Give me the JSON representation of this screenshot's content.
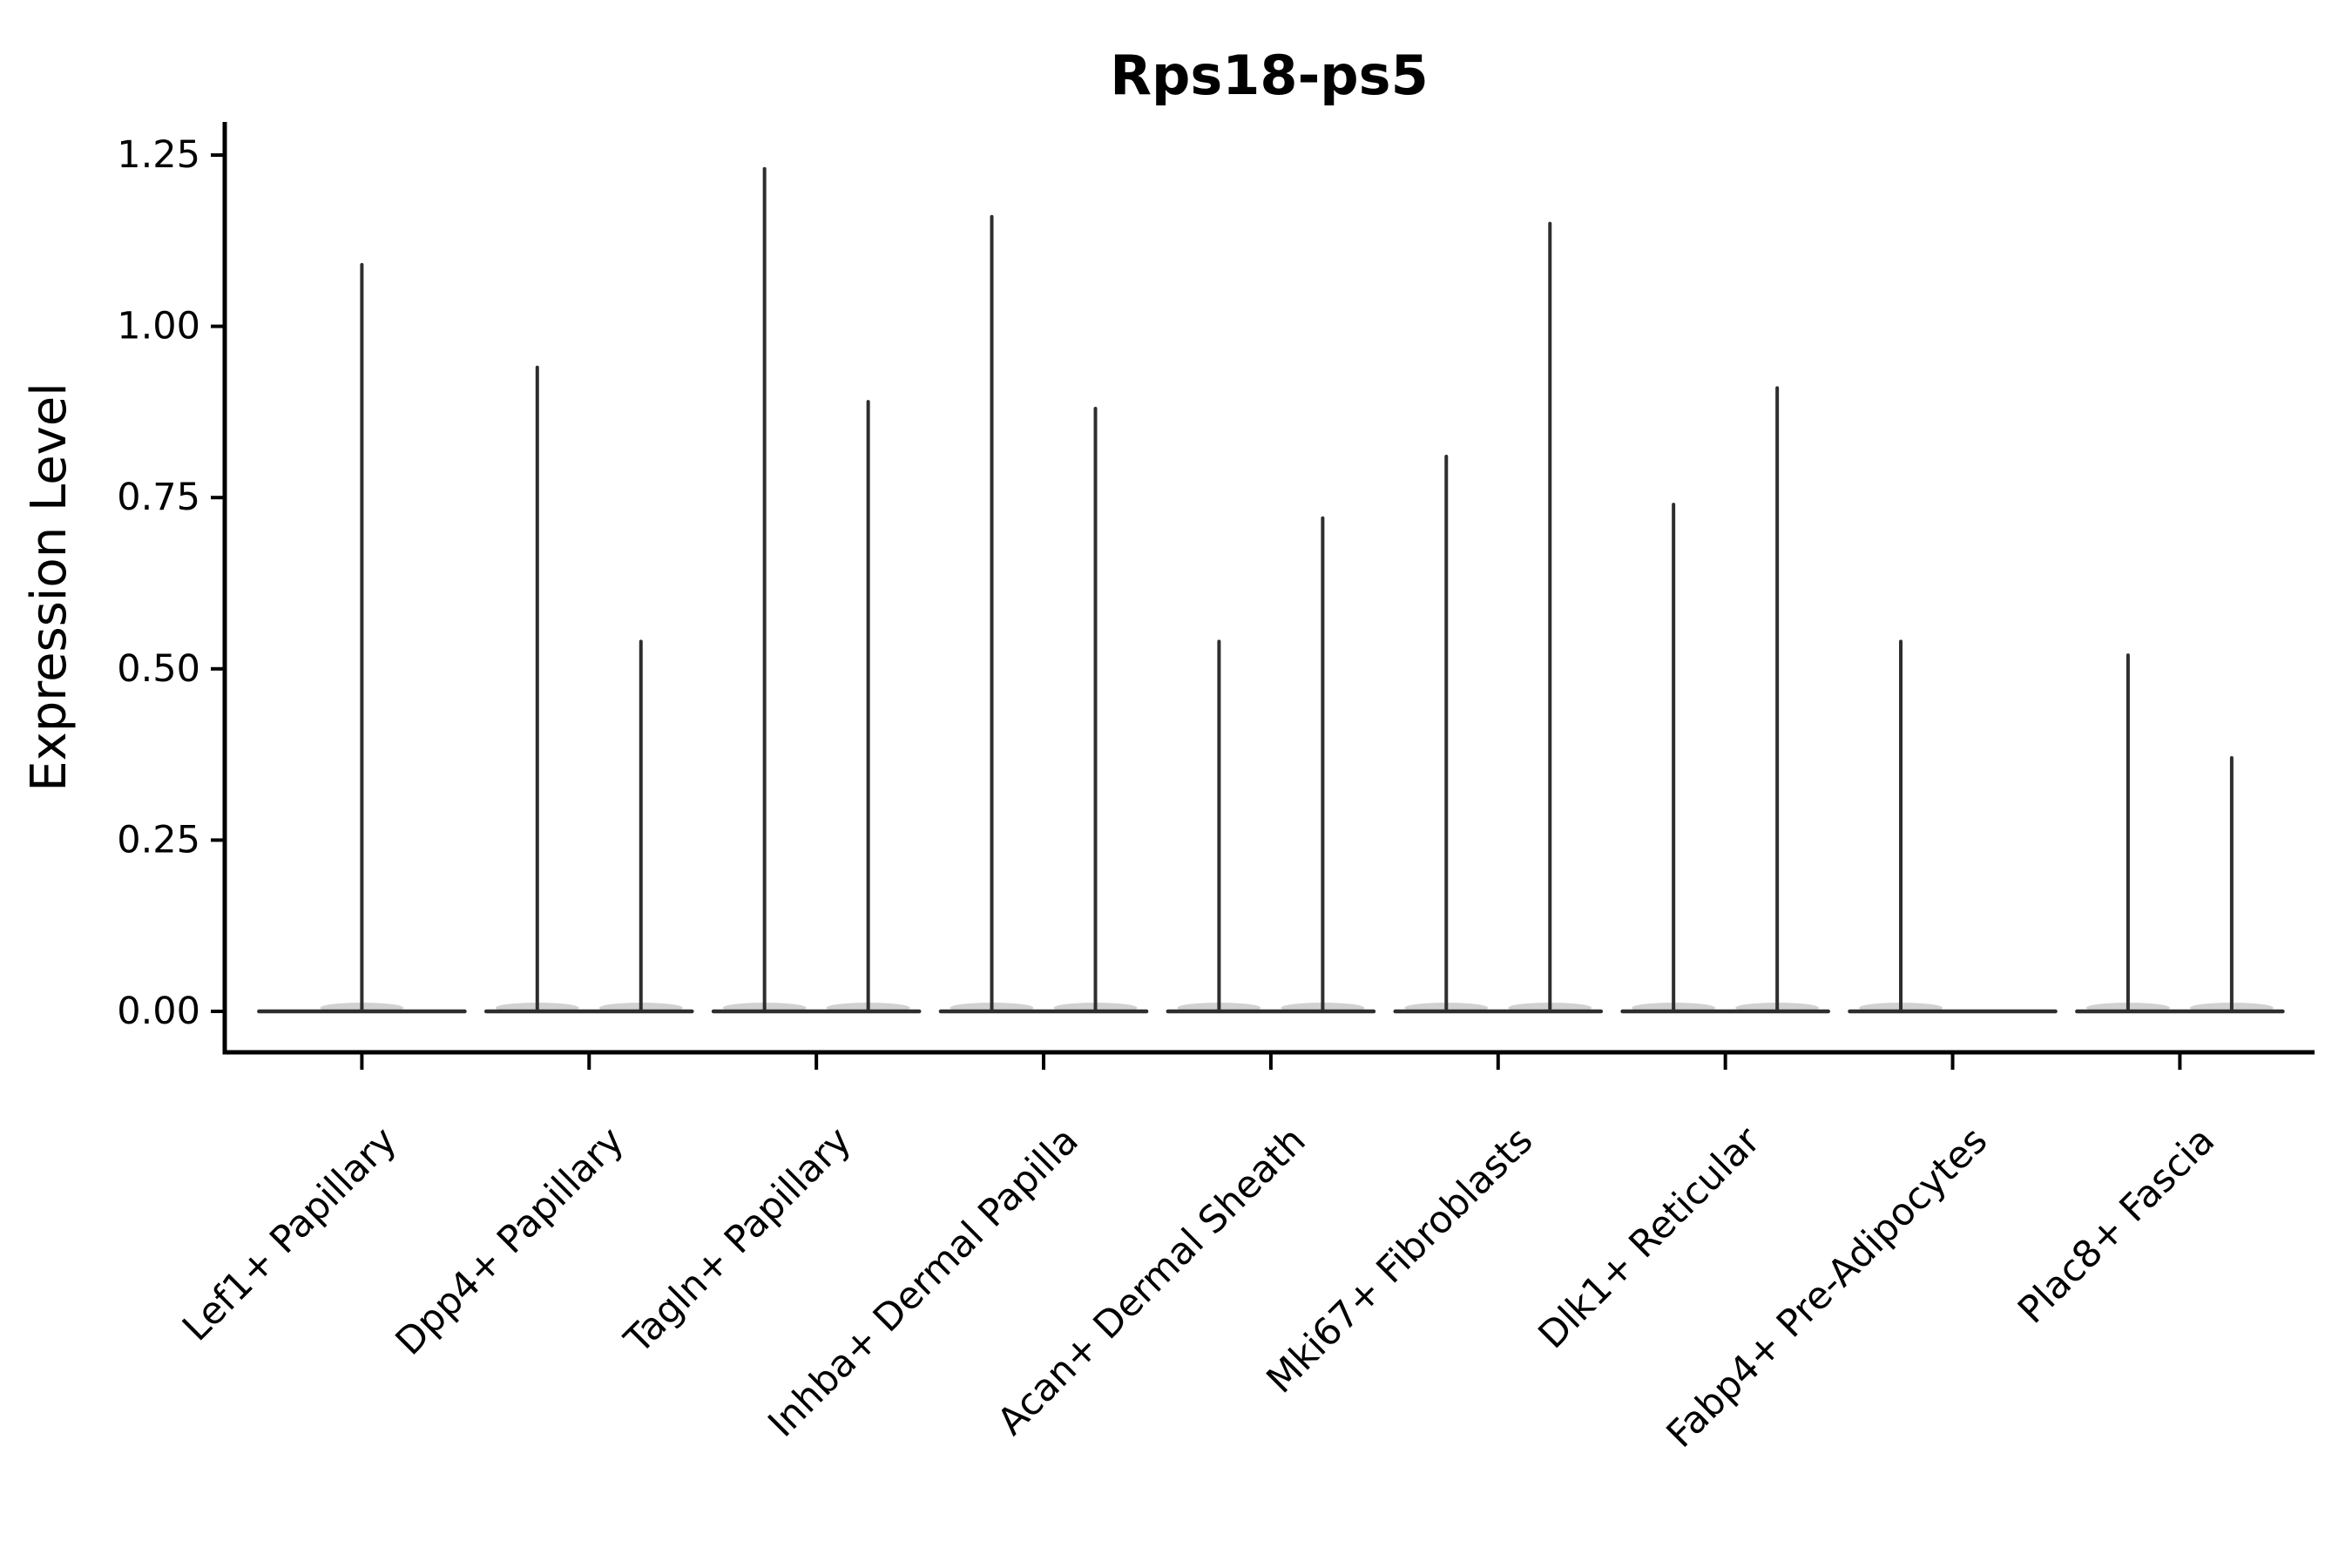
{
  "chart_data": {
    "type": "violin",
    "title": "Rps18-ps5",
    "xlabel": "",
    "ylabel": "Expression Level",
    "categories": [
      "Lef1+ Papillary",
      "Dpp4+ Papillary",
      "Tagln+ Papillary",
      "Inhba+ Dermal Papilla",
      "Acan+ Dermal Sheath",
      "Mki67+ Fibroblasts",
      "Dlk1+ Reticular",
      "Fabp4+ Pre-Adipocytes",
      "Plac8+ Fascia"
    ],
    "ytick_labels": [
      "0.00",
      "0.25",
      "0.50",
      "0.75",
      "1.00",
      "1.25"
    ],
    "ytick_values": [
      0,
      0.25,
      0.5,
      0.75,
      1.0,
      1.25
    ],
    "ylim": [
      -0.06,
      1.3
    ],
    "grid": false,
    "legend": "none",
    "description": "Very thin needle-like violins (sparse expression): flat base at 0 with a vertical spike up to the max expression value; some categories contain two side-by-side violins, Lef1+ Papillary has a single centered spike and Fabp4+ Pre-Adipocytes only a left spike.",
    "violins": [
      {
        "category": "Lef1+ Papillary",
        "spikes": [
          {
            "position": "center",
            "max": 1.09
          }
        ]
      },
      {
        "category": "Dpp4+ Papillary",
        "spikes": [
          {
            "position": "left",
            "max": 0.94
          },
          {
            "position": "right",
            "max": 0.54
          }
        ]
      },
      {
        "category": "Tagln+ Papillary",
        "spikes": [
          {
            "position": "left",
            "max": 1.23
          },
          {
            "position": "right",
            "max": 0.89
          }
        ]
      },
      {
        "category": "Inhba+ Dermal Papilla",
        "spikes": [
          {
            "position": "left",
            "max": 1.16
          },
          {
            "position": "right",
            "max": 0.88
          }
        ]
      },
      {
        "category": "Acan+ Dermal Sheath",
        "spikes": [
          {
            "position": "left",
            "max": 0.54
          },
          {
            "position": "right",
            "max": 0.72
          }
        ]
      },
      {
        "category": "Mki67+ Fibroblasts",
        "spikes": [
          {
            "position": "left",
            "max": 0.81
          },
          {
            "position": "right",
            "max": 1.15
          }
        ]
      },
      {
        "category": "Dlk1+ Reticular",
        "spikes": [
          {
            "position": "left",
            "max": 0.74
          },
          {
            "position": "right",
            "max": 0.91
          }
        ]
      },
      {
        "category": "Fabp4+ Pre-Adipocytes",
        "spikes": [
          {
            "position": "left",
            "max": 0.54
          }
        ]
      },
      {
        "category": "Plac8+ Fascia",
        "spikes": [
          {
            "position": "left",
            "max": 0.52
          },
          {
            "position": "right",
            "max": 0.37
          }
        ]
      }
    ],
    "colors": {
      "violin": "#2e2e2e",
      "axis": "#000000",
      "text": "#000000",
      "background": "#ffffff"
    }
  }
}
